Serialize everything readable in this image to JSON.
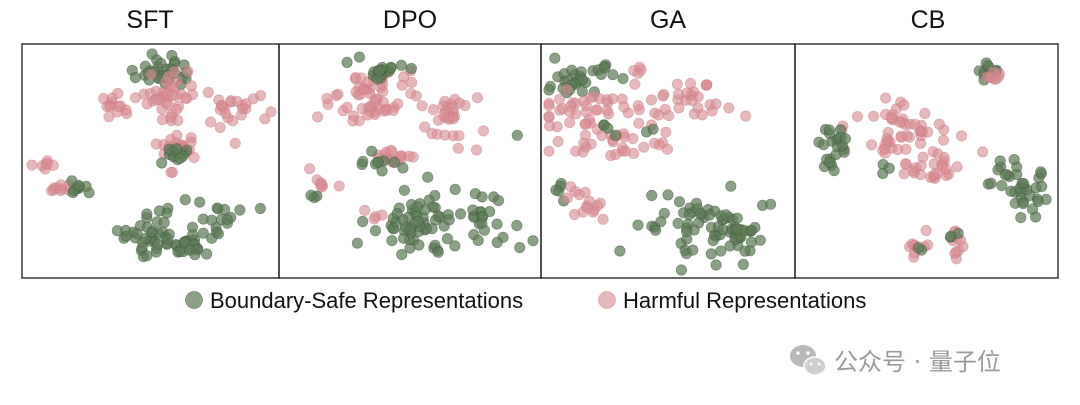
{
  "chart_data": {
    "type": "scatter",
    "point_colors": {
      "safe": "#5e7d58",
      "harmful": "#d98c92"
    },
    "panels": [
      {
        "title": "SFT",
        "xlim": [
          0,
          1
        ],
        "ylim": [
          0,
          1
        ],
        "clusters": [
          {
            "cls": "safe",
            "cx": 0.57,
            "cy": 0.92,
            "sx": 0.05,
            "sy": 0.035,
            "n": 32
          },
          {
            "cls": "harm",
            "cx": 0.57,
            "cy": 0.8,
            "sx": 0.07,
            "sy": 0.05,
            "n": 40
          },
          {
            "cls": "harm",
            "cx": 0.34,
            "cy": 0.75,
            "sx": 0.05,
            "sy": 0.03,
            "n": 12
          },
          {
            "cls": "harm",
            "cx": 0.84,
            "cy": 0.74,
            "sx": 0.07,
            "sy": 0.06,
            "n": 24
          },
          {
            "cls": "harm",
            "cx": 0.62,
            "cy": 0.56,
            "sx": 0.04,
            "sy": 0.03,
            "n": 22
          },
          {
            "cls": "safe",
            "cx": 0.62,
            "cy": 0.53,
            "sx": 0.04,
            "sy": 0.02,
            "n": 12
          },
          {
            "cls": "harm",
            "cx": 0.07,
            "cy": 0.48,
            "sx": 0.03,
            "sy": 0.012,
            "n": 7
          },
          {
            "cls": "harm",
            "cx": 0.1,
            "cy": 0.37,
            "sx": 0.04,
            "sy": 0.018,
            "n": 9
          },
          {
            "cls": "safe",
            "cx": 0.21,
            "cy": 0.38,
            "sx": 0.04,
            "sy": 0.018,
            "n": 9
          },
          {
            "cls": "safe",
            "cx": 0.48,
            "cy": 0.16,
            "sx": 0.06,
            "sy": 0.05,
            "n": 38
          },
          {
            "cls": "safe",
            "cx": 0.66,
            "cy": 0.12,
            "sx": 0.04,
            "sy": 0.03,
            "n": 22
          },
          {
            "cls": "safe",
            "cx": 0.77,
            "cy": 0.22,
            "sx": 0.06,
            "sy": 0.05,
            "n": 18
          },
          {
            "cls": "harm",
            "cx": 0.58,
            "cy": 0.45,
            "sx": 0.01,
            "sy": 0.01,
            "n": 2
          }
        ]
      },
      {
        "title": "DPO",
        "xlim": [
          0,
          1
        ],
        "ylim": [
          0,
          1
        ],
        "clusters": [
          {
            "cls": "harm",
            "cx": 0.28,
            "cy": 0.74,
            "sx": 0.1,
            "sy": 0.04,
            "n": 26
          },
          {
            "cls": "harm",
            "cx": 0.37,
            "cy": 0.84,
            "sx": 0.1,
            "sy": 0.045,
            "n": 30
          },
          {
            "cls": "safe",
            "cx": 0.4,
            "cy": 0.91,
            "sx": 0.06,
            "sy": 0.03,
            "n": 18
          },
          {
            "cls": "harm",
            "cx": 0.63,
            "cy": 0.7,
            "sx": 0.07,
            "sy": 0.06,
            "n": 30
          },
          {
            "cls": "harm",
            "cx": 0.43,
            "cy": 0.52,
            "sx": 0.05,
            "sy": 0.02,
            "n": 16
          },
          {
            "cls": "safe",
            "cx": 0.36,
            "cy": 0.5,
            "sx": 0.05,
            "sy": 0.02,
            "n": 10
          },
          {
            "cls": "harm",
            "cx": 0.14,
            "cy": 0.39,
            "sx": 0.03,
            "sy": 0.012,
            "n": 6
          },
          {
            "cls": "safe",
            "cx": 0.14,
            "cy": 0.34,
            "sx": 0.02,
            "sy": 0.015,
            "n": 3
          },
          {
            "cls": "safe",
            "cx": 0.52,
            "cy": 0.2,
            "sx": 0.09,
            "sy": 0.07,
            "n": 55
          },
          {
            "cls": "safe",
            "cx": 0.77,
            "cy": 0.22,
            "sx": 0.07,
            "sy": 0.07,
            "n": 28
          },
          {
            "cls": "harm",
            "cx": 0.35,
            "cy": 0.26,
            "sx": 0.02,
            "sy": 0.02,
            "n": 4
          },
          {
            "cls": "harm",
            "cx": 0.1,
            "cy": 0.46,
            "sx": 0.01,
            "sy": 0.01,
            "n": 1
          },
          {
            "cls": "safe",
            "cx": 0.94,
            "cy": 0.61,
            "sx": 0.005,
            "sy": 0.005,
            "n": 1
          }
        ]
      },
      {
        "title": "GA",
        "xlim": [
          0,
          1
        ],
        "ylim": [
          0,
          1
        ],
        "clusters": [
          {
            "cls": "safe",
            "cx": 0.1,
            "cy": 0.87,
            "sx": 0.05,
            "sy": 0.05,
            "n": 24
          },
          {
            "cls": "safe",
            "cx": 0.2,
            "cy": 0.92,
            "sx": 0.04,
            "sy": 0.02,
            "n": 8
          },
          {
            "cls": "harm",
            "cx": 0.22,
            "cy": 0.73,
            "sx": 0.13,
            "sy": 0.04,
            "n": 42
          },
          {
            "cls": "harm",
            "cx": 0.25,
            "cy": 0.58,
            "sx": 0.12,
            "sy": 0.03,
            "n": 28
          },
          {
            "cls": "harm",
            "cx": 0.6,
            "cy": 0.77,
            "sx": 0.1,
            "sy": 0.05,
            "n": 28
          },
          {
            "cls": "harm",
            "cx": 0.37,
            "cy": 0.91,
            "sx": 0.02,
            "sy": 0.02,
            "n": 5
          },
          {
            "cls": "safe",
            "cx": 0.26,
            "cy": 0.65,
            "sx": 0.02,
            "sy": 0.02,
            "n": 4
          },
          {
            "cls": "safe",
            "cx": 0.43,
            "cy": 0.64,
            "sx": 0.02,
            "sy": 0.01,
            "n": 2
          },
          {
            "cls": "safe",
            "cx": 0.06,
            "cy": 0.37,
            "sx": 0.03,
            "sy": 0.02,
            "n": 5
          },
          {
            "cls": "harm",
            "cx": 0.11,
            "cy": 0.35,
            "sx": 0.03,
            "sy": 0.015,
            "n": 5
          },
          {
            "cls": "harm",
            "cx": 0.19,
            "cy": 0.28,
            "sx": 0.04,
            "sy": 0.02,
            "n": 10
          },
          {
            "cls": "safe",
            "cx": 0.6,
            "cy": 0.2,
            "sx": 0.12,
            "sy": 0.08,
            "n": 45
          },
          {
            "cls": "safe",
            "cx": 0.78,
            "cy": 0.16,
            "sx": 0.05,
            "sy": 0.05,
            "n": 30
          },
          {
            "cls": "safe",
            "cx": 0.93,
            "cy": 0.3,
            "sx": 0.01,
            "sy": 0.01,
            "n": 2
          }
        ]
      },
      {
        "title": "CB",
        "xlim": [
          0,
          1
        ],
        "ylim": [
          0,
          1
        ],
        "clusters": [
          {
            "cls": "safe",
            "cx": 0.76,
            "cy": 0.91,
            "sx": 0.02,
            "sy": 0.025,
            "n": 12
          },
          {
            "cls": "harm",
            "cx": 0.77,
            "cy": 0.89,
            "sx": 0.02,
            "sy": 0.02,
            "n": 8
          },
          {
            "cls": "harm",
            "cx": 0.4,
            "cy": 0.6,
            "sx": 0.11,
            "sy": 0.08,
            "n": 60
          },
          {
            "cls": "safe",
            "cx": 0.13,
            "cy": 0.56,
            "sx": 0.035,
            "sy": 0.045,
            "n": 22
          },
          {
            "cls": "harm",
            "cx": 0.53,
            "cy": 0.46,
            "sx": 0.05,
            "sy": 0.03,
            "n": 14
          },
          {
            "cls": "safe",
            "cx": 0.87,
            "cy": 0.37,
            "sx": 0.06,
            "sy": 0.07,
            "n": 36
          },
          {
            "cls": "harm",
            "cx": 0.47,
            "cy": 0.11,
            "sx": 0.02,
            "sy": 0.03,
            "n": 9
          },
          {
            "cls": "safe",
            "cx": 0.48,
            "cy": 0.1,
            "sx": 0.01,
            "sy": 0.01,
            "n": 2
          },
          {
            "cls": "harm",
            "cx": 0.62,
            "cy": 0.13,
            "sx": 0.025,
            "sy": 0.04,
            "n": 10
          },
          {
            "cls": "safe",
            "cx": 0.61,
            "cy": 0.16,
            "sx": 0.012,
            "sy": 0.015,
            "n": 3
          },
          {
            "cls": "safe",
            "cx": 0.33,
            "cy": 0.45,
            "sx": 0.02,
            "sy": 0.015,
            "n": 3
          }
        ]
      }
    ],
    "legend": [
      {
        "label": "Boundary-Safe Representations",
        "color": "#5e7d58"
      },
      {
        "label": "Harmful Representations",
        "color": "#d98c92"
      }
    ],
    "legend_placement": "bottom-center",
    "grid": false
  },
  "watermark": {
    "text": "公众号 · 量子位"
  }
}
